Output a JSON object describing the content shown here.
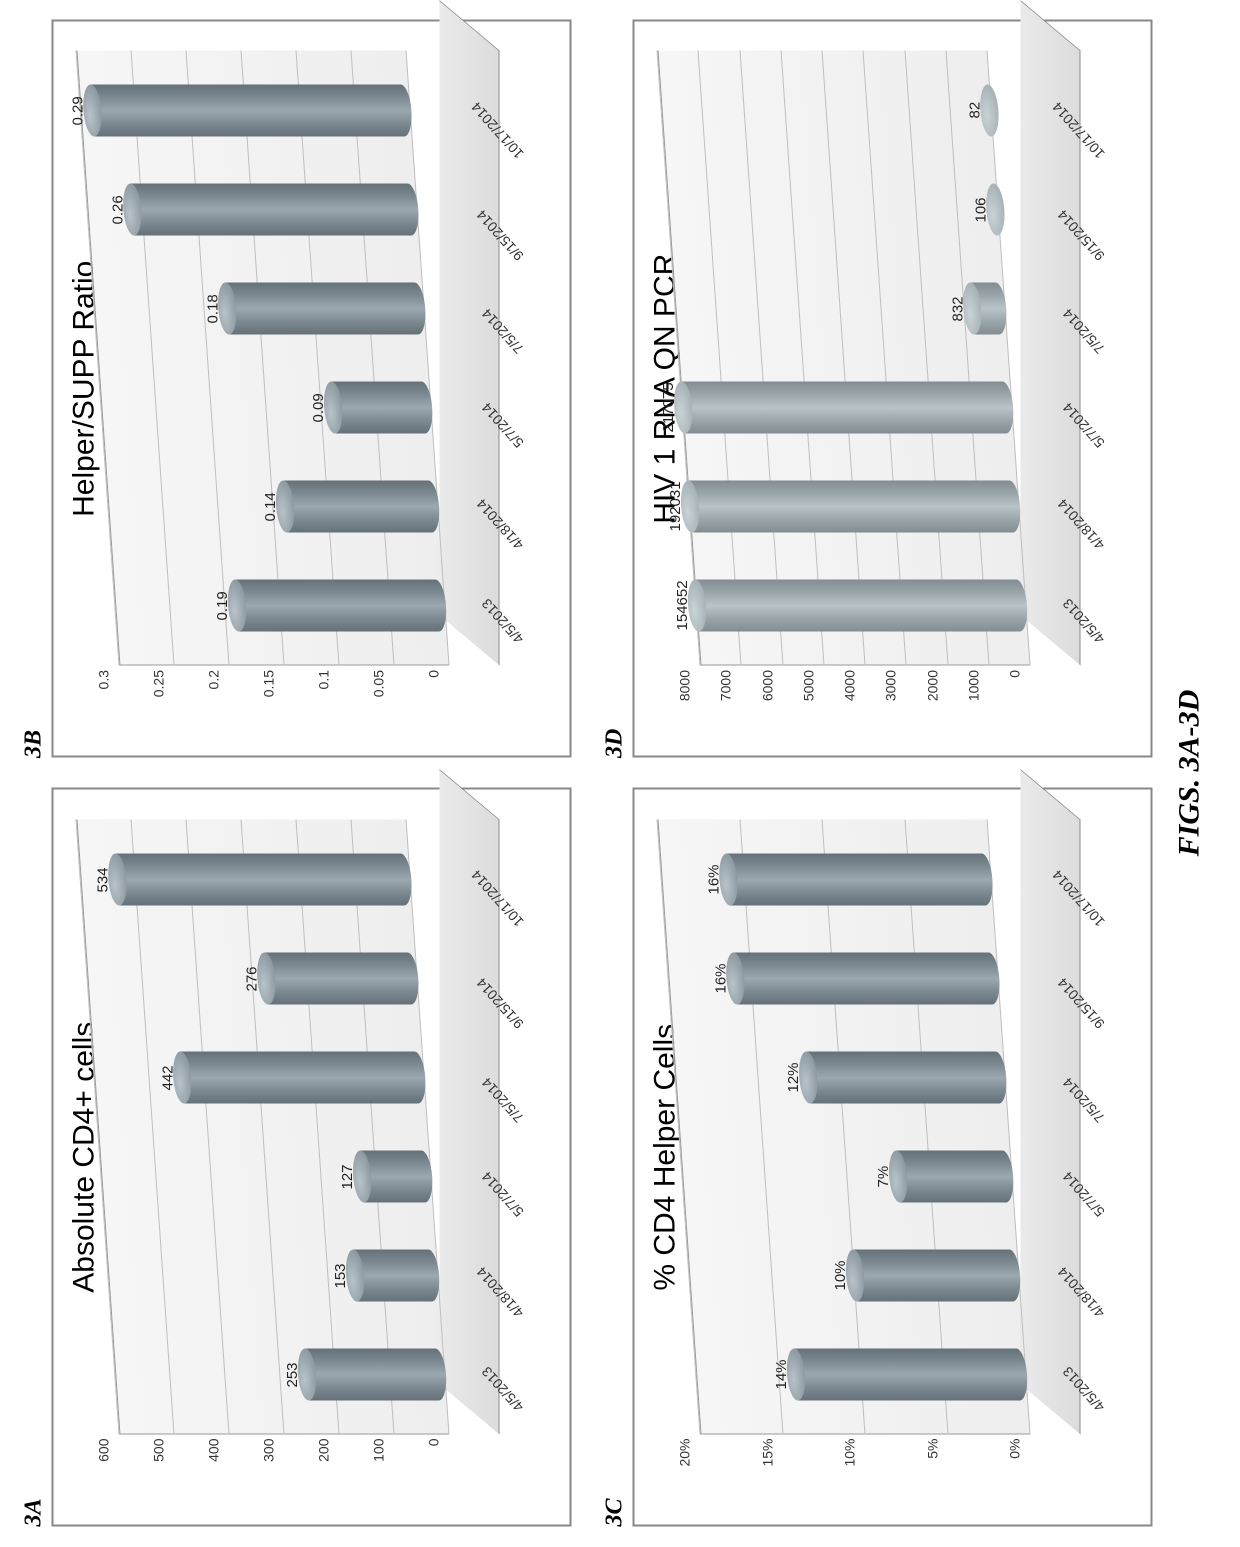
{
  "figure_caption": "FIGS. 3A-3D",
  "categories": [
    "4/5/2013",
    "4/18/2014",
    "5/7/2014",
    "7/5/2014",
    "9/15/2014",
    "10/17/2014"
  ],
  "charts": {
    "A": {
      "panel_label": "3A",
      "title": "Absolute CD4+ cells",
      "type": "bar-3d-cylinder",
      "values": [
        253,
        153,
        127,
        442,
        276,
        534
      ],
      "value_labels": [
        "253",
        "153",
        "127",
        "442",
        "276",
        "534"
      ],
      "ylim": [
        0,
        600
      ],
      "ytick_step": 100,
      "yticks": [
        "0",
        "100",
        "200",
        "300",
        "400",
        "500",
        "600"
      ],
      "bar_color": "#7d8a92",
      "bar_top_color": "#b8c3c9",
      "grid_color": "#bfbfbf",
      "backwall_color": "#f0f0f0",
      "floor_color": "#e3e3e3",
      "label_fontsize": 15,
      "tick_fontsize": 14,
      "title_fontsize": 30
    },
    "B": {
      "panel_label": "3B",
      "title": "Helper/SUPP Ratio",
      "type": "bar-3d-cylinder",
      "values": [
        0.19,
        0.14,
        0.09,
        0.18,
        0.26,
        0.29
      ],
      "value_labels": [
        "0.19",
        "0.14",
        "0.09",
        "0.18",
        "0.26",
        "0.29"
      ],
      "ylim": [
        0,
        0.3
      ],
      "ytick_step": 0.05,
      "yticks": [
        "0",
        "0.05",
        "0.1",
        "0.15",
        "0.2",
        "0.25",
        "0.3"
      ],
      "bar_color": "#7d8a92",
      "bar_top_color": "#b8c3c9",
      "grid_color": "#bfbfbf",
      "backwall_color": "#f0f0f0",
      "floor_color": "#e3e3e3",
      "label_fontsize": 15,
      "tick_fontsize": 14,
      "title_fontsize": 30
    },
    "C": {
      "panel_label": "3C",
      "title": "% CD4 Helper Cells",
      "type": "bar-3d-cylinder",
      "values": [
        0.14,
        0.1,
        0.07,
        0.12,
        0.16,
        0.16
      ],
      "value_labels": [
        "14%",
        "10%",
        "7%",
        "12%",
        "16%",
        "16%"
      ],
      "ylim": [
        0,
        0.2
      ],
      "ytick_step": 0.05,
      "yticks": [
        "0%",
        "5%",
        "10%",
        "15%",
        "20%"
      ],
      "bar_color": "#7d8a92",
      "bar_top_color": "#b8c3c9",
      "grid_color": "#bfbfbf",
      "backwall_color": "#f0f0f0",
      "floor_color": "#e3e3e3",
      "label_fontsize": 15,
      "tick_fontsize": 14,
      "title_fontsize": 30
    },
    "D": {
      "panel_label": "3D",
      "title": "HIV 1 RNA QN PCR",
      "type": "bar-3d-cylinder",
      "values": [
        154652,
        192031,
        217075,
        832,
        106,
        82
      ],
      "value_labels": [
        "154652",
        "192031",
        "217075",
        "832",
        "106",
        "82"
      ],
      "label_offsets_override": true,
      "ylim": [
        0,
        8000
      ],
      "ytick_step": 1000,
      "yticks": [
        "0",
        "1000",
        "2000",
        "3000",
        "4000",
        "5000",
        "6000",
        "7000",
        "8000"
      ],
      "bar_color": "#9aa6aa",
      "bar_top_color": "#c9d3d6",
      "grid_color": "#bfbfbf",
      "backwall_color": "#f0f0f0",
      "floor_color": "#e3e3e3",
      "label_fontsize": 15,
      "tick_fontsize": 14,
      "title_fontsize": 30
    }
  }
}
